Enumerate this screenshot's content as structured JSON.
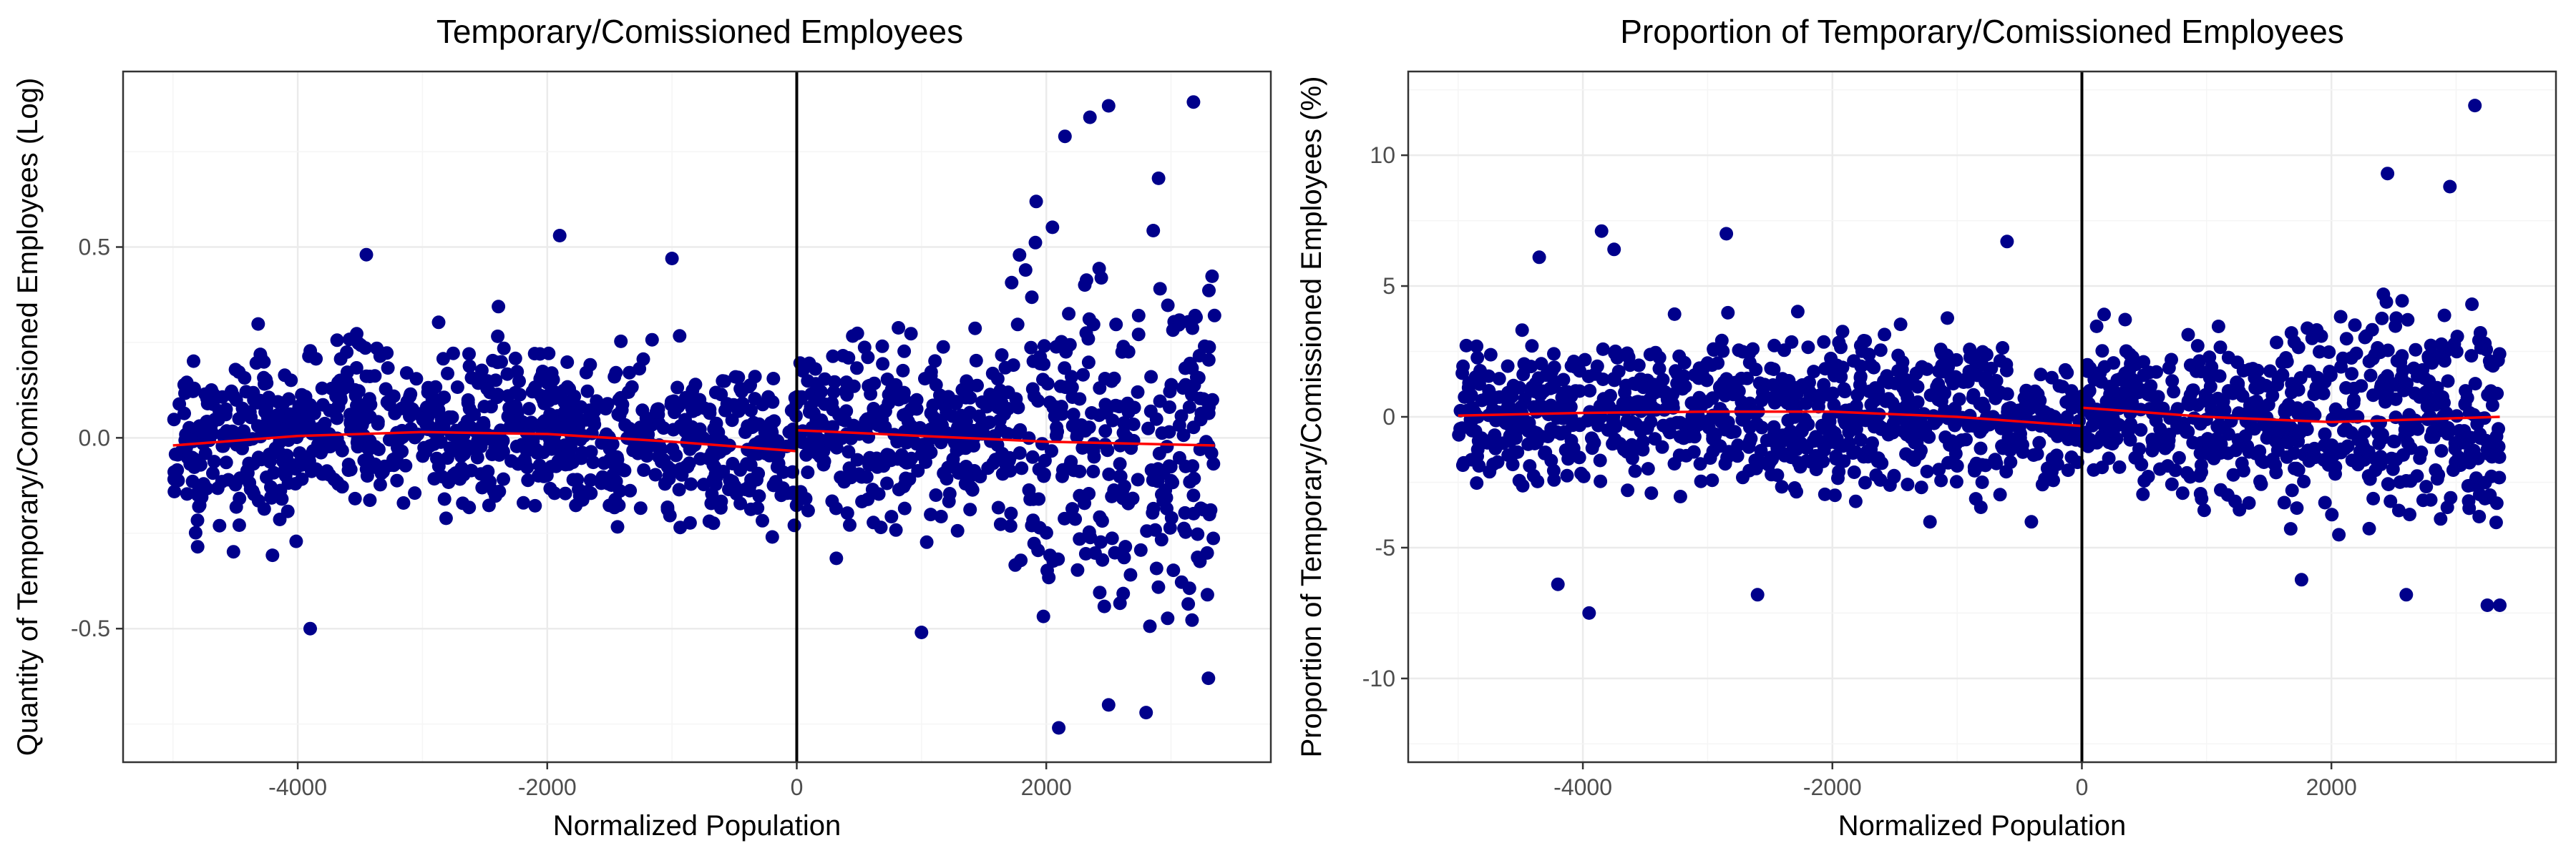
{
  "chart_data": [
    {
      "type": "scatter",
      "title": "Temporary/Comissioned Employees",
      "xlabel": "Normalized Population",
      "ylabel": "Quantity of Temporary/Comissioned Employees (Log)",
      "xlim": [
        -5400,
        3800
      ],
      "ylim": [
        -0.85,
        0.96
      ],
      "xticks": [
        -4000,
        -2000,
        0,
        2000
      ],
      "xtick_labels": [
        "-4000",
        "-2000",
        "0",
        "2000"
      ],
      "yticks": [
        -0.5,
        0.0,
        0.5
      ],
      "ytick_labels": [
        "-0.5",
        "0.0",
        "0.5"
      ],
      "cutoff_x": 0,
      "grid": true,
      "point_color": "#00008B",
      "fit_color": "#FF0000",
      "cutoff_color": "#000000",
      "n_points": 1500,
      "x_range": [
        -5000,
        3350
      ],
      "y_center": 0.0,
      "y_spread_left": 0.16,
      "y_spread_right_near": 0.17,
      "y_spread_right_far": 0.34,
      "extremes": [
        {
          "x": 3180,
          "y": 0.88
        },
        {
          "x": 2500,
          "y": 0.87
        },
        {
          "x": 2350,
          "y": 0.84
        },
        {
          "x": 2150,
          "y": 0.79
        },
        {
          "x": 2900,
          "y": 0.68
        },
        {
          "x": 2100,
          "y": -0.76
        },
        {
          "x": 2800,
          "y": -0.72
        },
        {
          "x": 2500,
          "y": -0.7
        },
        {
          "x": 3300,
          "y": -0.63
        },
        {
          "x": -3900,
          "y": -0.5
        },
        {
          "x": 1000,
          "y": -0.51
        },
        {
          "x": -1900,
          "y": 0.53
        },
        {
          "x": -3450,
          "y": 0.48
        },
        {
          "x": -1000,
          "y": 0.47
        }
      ],
      "fit_left": [
        [
          -5000,
          -0.02
        ],
        [
          -4000,
          0.005
        ],
        [
          -3000,
          0.015
        ],
        [
          -2000,
          0.01
        ],
        [
          -1000,
          -0.01
        ],
        [
          0,
          -0.035
        ]
      ],
      "fit_right": [
        [
          0,
          0.02
        ],
        [
          1000,
          0.005
        ],
        [
          2000,
          -0.01
        ],
        [
          3350,
          -0.02
        ]
      ]
    },
    {
      "type": "scatter",
      "title": "Proportion of Temporary/Comissioned Employees",
      "xlabel": "Normalized Population",
      "ylabel": "Proportion of Temporary/Comissioned Employees (%)",
      "xlim": [
        -5400,
        3800
      ],
      "ylim": [
        -13.2,
        13.2
      ],
      "xticks": [
        -4000,
        -2000,
        0,
        2000
      ],
      "xtick_labels": [
        "-4000",
        "-2000",
        "0",
        "2000"
      ],
      "yticks": [
        -10,
        -5,
        0,
        5,
        10
      ],
      "ytick_labels": [
        "-10",
        "-5",
        "0",
        "5",
        "10"
      ],
      "cutoff_x": 0,
      "grid": true,
      "point_color": "#00008B",
      "fit_color": "#FF0000",
      "cutoff_color": "#000000",
      "n_points": 1500,
      "x_range": [
        -5000,
        3350
      ],
      "y_center": 0.0,
      "y_spread_left": 2.1,
      "y_spread_right_near": 2.3,
      "y_spread_right_far": 3.0,
      "extremes": [
        {
          "x": 3150,
          "y": 11.9
        },
        {
          "x": 2450,
          "y": 9.3
        },
        {
          "x": 2950,
          "y": 8.8
        },
        {
          "x": -3850,
          "y": 7.1
        },
        {
          "x": -2850,
          "y": 7.0
        },
        {
          "x": -600,
          "y": 6.7
        },
        {
          "x": -4350,
          "y": 6.1
        },
        {
          "x": -3750,
          "y": 6.4
        },
        {
          "x": -3950,
          "y": -7.5
        },
        {
          "x": -2600,
          "y": -6.8
        },
        {
          "x": 3250,
          "y": -7.2
        },
        {
          "x": 3350,
          "y": -7.2
        },
        {
          "x": -4200,
          "y": -6.4
        },
        {
          "x": 2600,
          "y": -6.8
        }
      ],
      "fit_left": [
        [
          -5000,
          0.05
        ],
        [
          -4000,
          0.15
        ],
        [
          -3000,
          0.2
        ],
        [
          -2000,
          0.2
        ],
        [
          -1000,
          0.0
        ],
        [
          0,
          -0.35
        ]
      ],
      "fit_right": [
        [
          0,
          0.35
        ],
        [
          1000,
          0.0
        ],
        [
          2000,
          -0.2
        ],
        [
          3350,
          0.0
        ]
      ]
    }
  ]
}
